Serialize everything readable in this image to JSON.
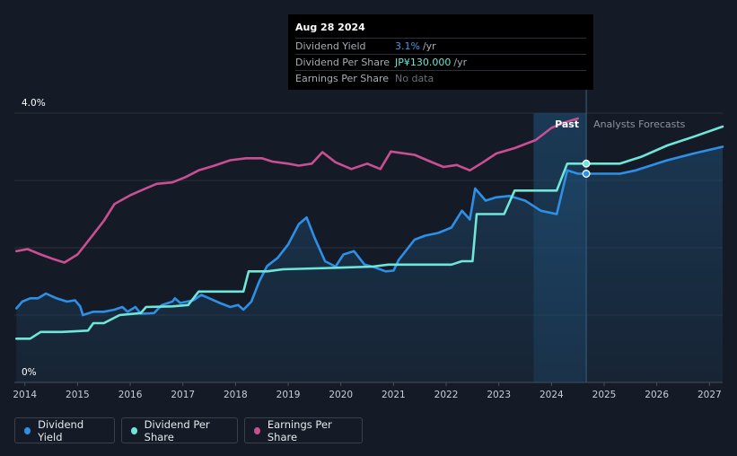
{
  "tooltip": {
    "date": "Aug 28 2024",
    "rows": [
      {
        "label": "Dividend Yield",
        "value": "3.1%",
        "unit": "/yr"
      },
      {
        "label": "Dividend Per Share",
        "value": "JP¥130.000",
        "unit": "/yr"
      },
      {
        "label": "Earnings Per Share",
        "value": "No data",
        "unit": ""
      }
    ]
  },
  "legend": [
    {
      "label": "Dividend Yield",
      "color": "#2e8fe6"
    },
    {
      "label": "Dividend Per Share",
      "color": "#6ee7d8"
    },
    {
      "label": "Earnings Per Share",
      "color": "#c94f92"
    }
  ],
  "chart_data": {
    "type": "line",
    "y_axis": {
      "ticks": [
        "4.0%",
        "0%"
      ],
      "min": 0,
      "max": 4.0
    },
    "x_ticks": [
      "2014",
      "2015",
      "2016",
      "2017",
      "2018",
      "2019",
      "2020",
      "2021",
      "2022",
      "2023",
      "2024",
      "2025",
      "2026",
      "2027"
    ],
    "x_range": [
      2013.8,
      2027.25
    ],
    "past_label": "Past",
    "forecast_label": "Analysts Forecasts",
    "forecast_start": 2023.66,
    "hover_x": 2024.66,
    "grid": true,
    "series": [
      {
        "name": "Dividend Yield",
        "color": "#2e8fe6",
        "points": [
          [
            2013.84,
            1.1
          ],
          [
            2013.95,
            1.2
          ],
          [
            2014.1,
            1.25
          ],
          [
            2014.25,
            1.25
          ],
          [
            2014.4,
            1.32
          ],
          [
            2014.6,
            1.25
          ],
          [
            2014.8,
            1.2
          ],
          [
            2014.95,
            1.22
          ],
          [
            2015.05,
            1.13
          ],
          [
            2015.1,
            1.0
          ],
          [
            2015.3,
            1.05
          ],
          [
            2015.5,
            1.05
          ],
          [
            2015.7,
            1.08
          ],
          [
            2015.85,
            1.12
          ],
          [
            2015.95,
            1.05
          ],
          [
            2016.1,
            1.12
          ],
          [
            2016.2,
            1.02
          ],
          [
            2016.45,
            1.03
          ],
          [
            2016.6,
            1.15
          ],
          [
            2016.8,
            1.2
          ],
          [
            2016.85,
            1.25
          ],
          [
            2016.95,
            1.18
          ],
          [
            2017.2,
            1.22
          ],
          [
            2017.35,
            1.3
          ],
          [
            2017.5,
            1.25
          ],
          [
            2017.7,
            1.18
          ],
          [
            2017.9,
            1.12
          ],
          [
            2018.05,
            1.15
          ],
          [
            2018.15,
            1.08
          ],
          [
            2018.3,
            1.2
          ],
          [
            2018.45,
            1.5
          ],
          [
            2018.6,
            1.73
          ],
          [
            2018.8,
            1.85
          ],
          [
            2019.0,
            2.05
          ],
          [
            2019.2,
            2.35
          ],
          [
            2019.35,
            2.45
          ],
          [
            2019.5,
            2.15
          ],
          [
            2019.7,
            1.8
          ],
          [
            2019.9,
            1.72
          ],
          [
            2020.05,
            1.9
          ],
          [
            2020.25,
            1.95
          ],
          [
            2020.45,
            1.75
          ],
          [
            2020.6,
            1.72
          ],
          [
            2020.85,
            1.65
          ],
          [
            2021.0,
            1.66
          ],
          [
            2021.1,
            1.82
          ],
          [
            2021.4,
            2.12
          ],
          [
            2021.6,
            2.18
          ],
          [
            2021.85,
            2.22
          ],
          [
            2022.1,
            2.3
          ],
          [
            2022.3,
            2.55
          ],
          [
            2022.45,
            2.42
          ],
          [
            2022.55,
            2.88
          ],
          [
            2022.75,
            2.7
          ],
          [
            2022.95,
            2.75
          ],
          [
            2023.2,
            2.77
          ],
          [
            2023.5,
            2.7
          ],
          [
            2023.8,
            2.55
          ],
          [
            2024.1,
            2.5
          ],
          [
            2024.3,
            3.15
          ],
          [
            2024.5,
            3.1
          ],
          [
            2024.66,
            3.1
          ],
          [
            2025.3,
            3.1
          ],
          [
            2025.6,
            3.15
          ],
          [
            2026.2,
            3.3
          ],
          [
            2026.7,
            3.4
          ],
          [
            2027.25,
            3.5
          ]
        ]
      },
      {
        "name": "Dividend Per Share",
        "color": "#6ee7d8",
        "points": [
          [
            2013.84,
            0.65
          ],
          [
            2014.1,
            0.65
          ],
          [
            2014.3,
            0.75
          ],
          [
            2014.7,
            0.75
          ],
          [
            2015.2,
            0.77
          ],
          [
            2015.3,
            0.88
          ],
          [
            2015.5,
            0.88
          ],
          [
            2015.8,
            1.0
          ],
          [
            2016.2,
            1.03
          ],
          [
            2016.3,
            1.12
          ],
          [
            2016.8,
            1.13
          ],
          [
            2017.1,
            1.15
          ],
          [
            2017.3,
            1.35
          ],
          [
            2017.8,
            1.35
          ],
          [
            2018.15,
            1.35
          ],
          [
            2018.25,
            1.65
          ],
          [
            2018.6,
            1.65
          ],
          [
            2018.9,
            1.68
          ],
          [
            2019.8,
            1.7
          ],
          [
            2020.6,
            1.72
          ],
          [
            2020.9,
            1.75
          ],
          [
            2021.3,
            1.75
          ],
          [
            2021.6,
            1.75
          ],
          [
            2022.1,
            1.75
          ],
          [
            2022.3,
            1.8
          ],
          [
            2022.5,
            1.8
          ],
          [
            2022.58,
            2.5
          ],
          [
            2023.1,
            2.5
          ],
          [
            2023.3,
            2.85
          ],
          [
            2023.5,
            2.85
          ],
          [
            2024.1,
            2.85
          ],
          [
            2024.3,
            3.25
          ],
          [
            2024.66,
            3.25
          ],
          [
            2025.3,
            3.25
          ],
          [
            2025.7,
            3.35
          ],
          [
            2026.2,
            3.52
          ],
          [
            2026.7,
            3.65
          ],
          [
            2027.25,
            3.8
          ]
        ]
      },
      {
        "name": "Earnings Per Share",
        "color": "#c94f92",
        "points": [
          [
            2013.84,
            1.95
          ],
          [
            2014.05,
            1.98
          ],
          [
            2014.3,
            1.9
          ],
          [
            2014.55,
            1.83
          ],
          [
            2014.75,
            1.78
          ],
          [
            2015.0,
            1.9
          ],
          [
            2015.25,
            2.15
          ],
          [
            2015.5,
            2.4
          ],
          [
            2015.7,
            2.65
          ],
          [
            2016.0,
            2.78
          ],
          [
            2016.2,
            2.85
          ],
          [
            2016.5,
            2.95
          ],
          [
            2016.8,
            2.97
          ],
          [
            2017.05,
            3.05
          ],
          [
            2017.3,
            3.15
          ],
          [
            2017.6,
            3.22
          ],
          [
            2017.9,
            3.3
          ],
          [
            2018.2,
            3.33
          ],
          [
            2018.5,
            3.33
          ],
          [
            2018.7,
            3.28
          ],
          [
            2019.0,
            3.25
          ],
          [
            2019.2,
            3.22
          ],
          [
            2019.45,
            3.25
          ],
          [
            2019.65,
            3.42
          ],
          [
            2019.9,
            3.27
          ],
          [
            2020.2,
            3.17
          ],
          [
            2020.5,
            3.25
          ],
          [
            2020.75,
            3.17
          ],
          [
            2020.95,
            3.43
          ],
          [
            2021.4,
            3.38
          ],
          [
            2021.7,
            3.28
          ],
          [
            2021.95,
            3.2
          ],
          [
            2022.2,
            3.23
          ],
          [
            2022.45,
            3.15
          ],
          [
            2022.7,
            3.27
          ],
          [
            2022.95,
            3.4
          ],
          [
            2023.3,
            3.48
          ],
          [
            2023.7,
            3.6
          ],
          [
            2024.0,
            3.78
          ],
          [
            2024.2,
            3.85
          ],
          [
            2024.5,
            3.92
          ]
        ]
      }
    ]
  }
}
